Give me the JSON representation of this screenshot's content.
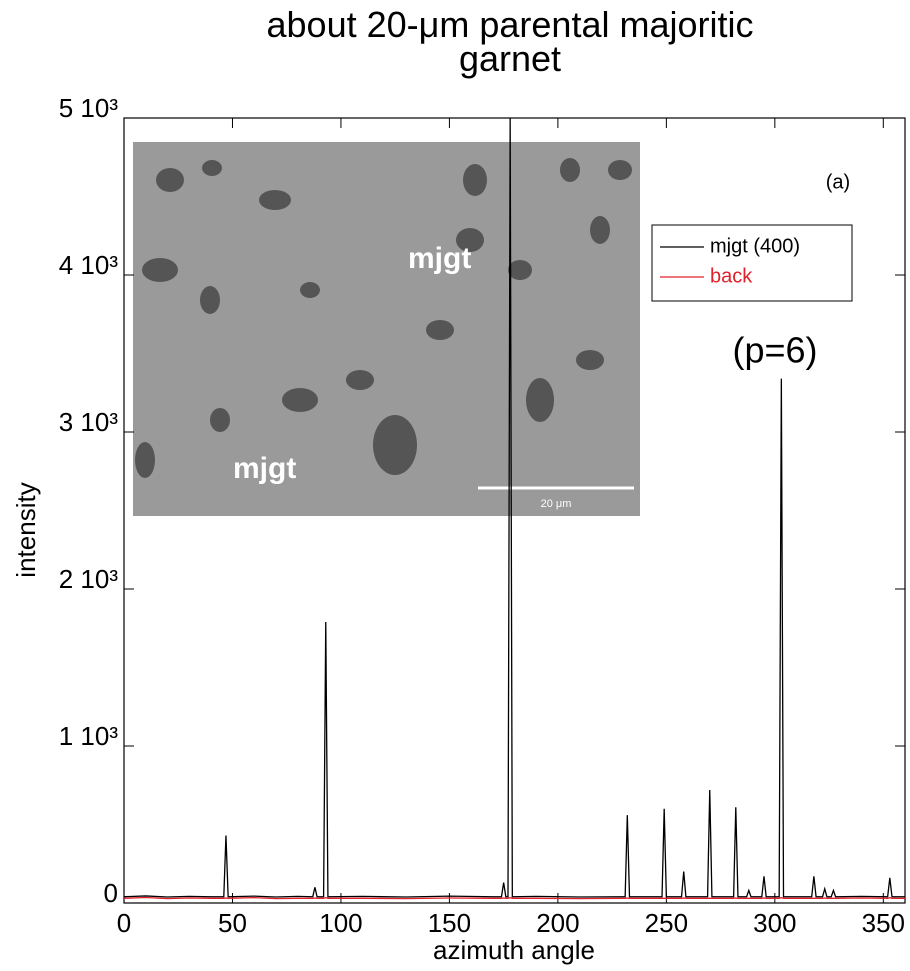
{
  "chart_data": {
    "type": "line",
    "title": "about 20-μm parental majoritic garnet",
    "xlabel": "azimuth angle",
    "ylabel": "intensity",
    "x": [
      0,
      10,
      20,
      30,
      40,
      46,
      47,
      48,
      60,
      70,
      80,
      87,
      88,
      89,
      92,
      93,
      94,
      110,
      130,
      150,
      170,
      174,
      175,
      176,
      177,
      178,
      179,
      190,
      210,
      230,
      231,
      232,
      233,
      248,
      249,
      250,
      257,
      258,
      259,
      269,
      270,
      271,
      281,
      282,
      283,
      287,
      288,
      289,
      294,
      295,
      296,
      302,
      303,
      304,
      317,
      318,
      319,
      322,
      323,
      324,
      326,
      327,
      328,
      340,
      352,
      353,
      354,
      360
    ],
    "series": [
      {
        "name": "mjgt (400)",
        "color": "#000000",
        "values": [
          40,
          45,
          38,
          42,
          40,
          40,
          430,
          40,
          44,
          38,
          42,
          40,
          100,
          40,
          40,
          1790,
          40,
          42,
          38,
          44,
          40,
          40,
          130,
          40,
          40,
          5000,
          40,
          42,
          38,
          40,
          40,
          560,
          40,
          40,
          600,
          40,
          40,
          200,
          40,
          40,
          720,
          40,
          40,
          610,
          40,
          40,
          80,
          40,
          40,
          170,
          40,
          40,
          3340,
          40,
          40,
          170,
          40,
          40,
          90,
          40,
          40,
          80,
          40,
          42,
          40,
          160,
          40,
          40
        ]
      },
      {
        "name": "back",
        "color": "#e0202a",
        "values": [
          30,
          35,
          28,
          32,
          30,
          30,
          32,
          30,
          34,
          28,
          30,
          30,
          32,
          30,
          30,
          34,
          30,
          30,
          28,
          32,
          30,
          30,
          32,
          30,
          30,
          34,
          30,
          30,
          28,
          30,
          30,
          32,
          30,
          30,
          30,
          30,
          30,
          32,
          30,
          30,
          30,
          30,
          30,
          32,
          30,
          30,
          30,
          30,
          30,
          32,
          30,
          30,
          34,
          30,
          30,
          30,
          30,
          30,
          32,
          30,
          30,
          30,
          30,
          32,
          30,
          34,
          30,
          30
        ]
      }
    ],
    "xlim": [
      0,
      360
    ],
    "xticks": [
      0,
      50,
      100,
      150,
      200,
      250,
      300,
      350
    ],
    "ylim": [
      0,
      5000
    ],
    "yticks": [
      0,
      {
        "value": 1000,
        "label": "1 10³"
      },
      {
        "value": 2000,
        "label": "2 10³"
      },
      {
        "value": 3000,
        "label": "3 10³"
      },
      {
        "value": 4000,
        "label": "4 10³"
      },
      {
        "value": 5000,
        "label": "5 10³"
      }
    ],
    "legend": "upper right",
    "annotations": [
      "(a)",
      "(p=6)"
    ],
    "inset": {
      "labels": [
        "mjgt",
        "mjgt"
      ],
      "scale_bar": "20 μm"
    }
  }
}
